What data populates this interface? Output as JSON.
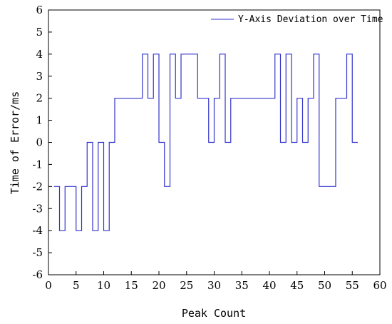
{
  "chart_data": {
    "type": "line",
    "step": true,
    "xlabel": "Peak Count",
    "ylabel": "Time of Error/ms",
    "xlim": [
      0,
      60
    ],
    "ylim": [
      -6,
      6
    ],
    "xticks": [
      0,
      5,
      10,
      15,
      20,
      25,
      30,
      35,
      40,
      45,
      50,
      55,
      60
    ],
    "yticks": [
      -6,
      -5,
      -4,
      -3,
      -2,
      -1,
      0,
      1,
      2,
      3,
      4,
      5,
      6
    ],
    "grid": false,
    "legend_position": "top-right",
    "series": [
      {
        "name": "Y-Axis Deviation over Time",
        "color": "#3333cc",
        "x": [
          1,
          2,
          3,
          4,
          5,
          6,
          7,
          8,
          9,
          10,
          11,
          12,
          13,
          14,
          15,
          16,
          17,
          18,
          19,
          20,
          21,
          22,
          23,
          24,
          25,
          26,
          27,
          28,
          29,
          30,
          31,
          32,
          33,
          34,
          35,
          36,
          37,
          38,
          39,
          40,
          41,
          42,
          43,
          44,
          45,
          46,
          47,
          48,
          49,
          50,
          51,
          52,
          53,
          54,
          55,
          56
        ],
        "y": [
          -2,
          -4,
          -2,
          -2,
          -4,
          -2,
          0,
          -4,
          0,
          -4,
          0,
          2,
          2,
          2,
          2,
          2,
          4,
          2,
          4,
          0,
          -2,
          4,
          2,
          4,
          4,
          4,
          2,
          2,
          0,
          2,
          4,
          0,
          2,
          2,
          2,
          2,
          2,
          2,
          2,
          2,
          4,
          0,
          4,
          0,
          2,
          0,
          2,
          4,
          -2,
          -2,
          -2,
          2,
          2,
          4,
          0,
          0
        ]
      }
    ]
  }
}
